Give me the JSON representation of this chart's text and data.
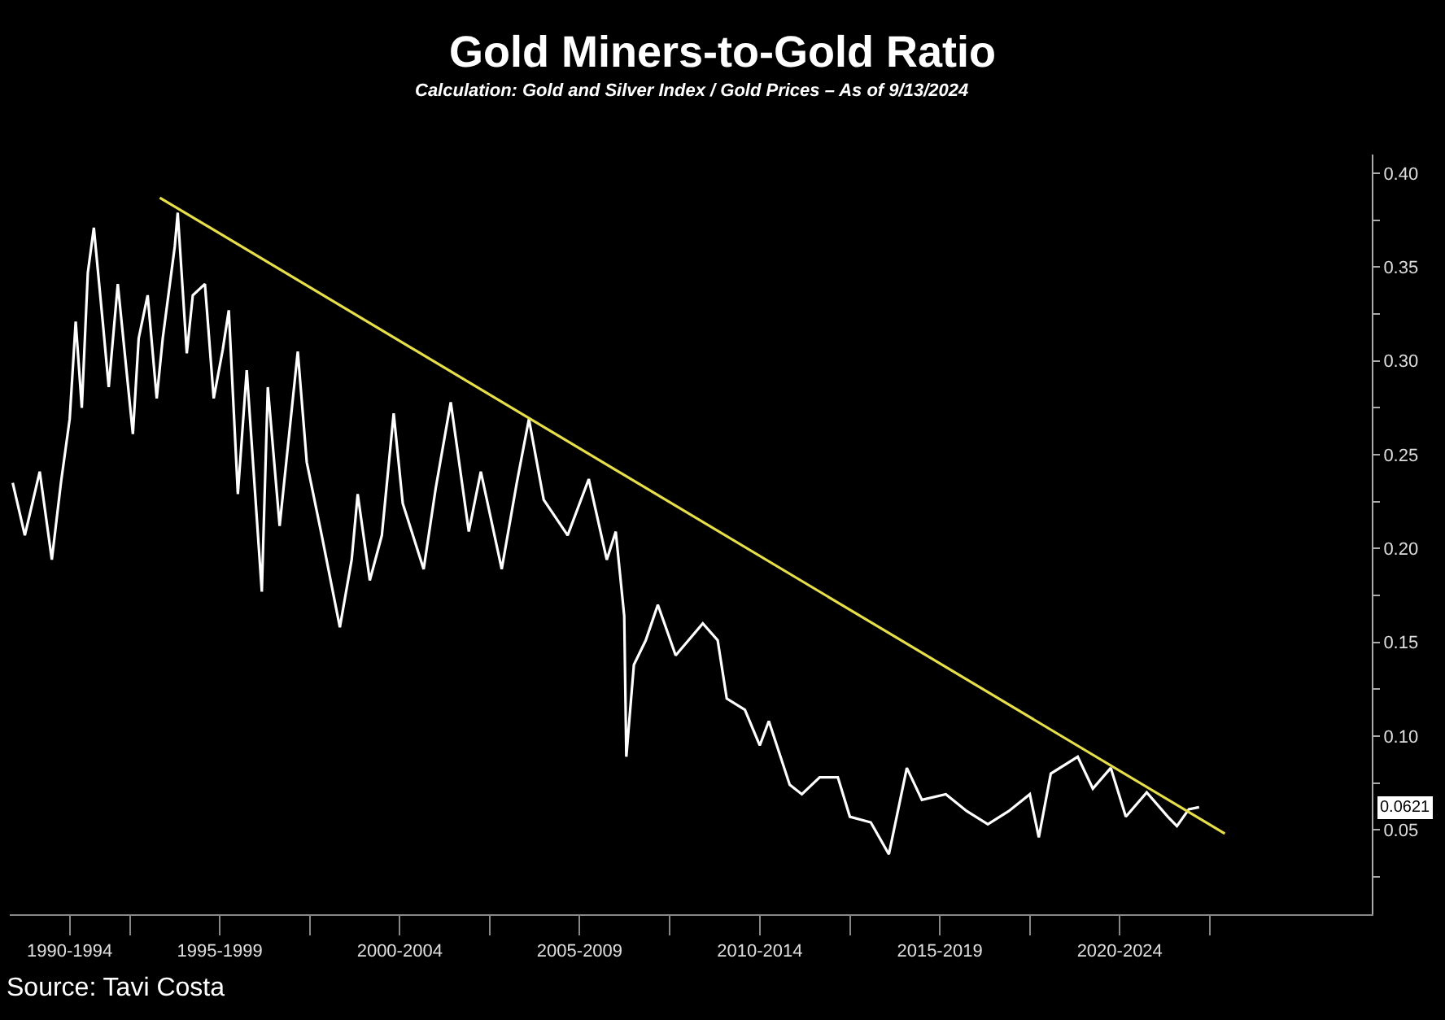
{
  "chart_data": {
    "type": "line",
    "title": "Gold Miners-to-Gold Ratio",
    "subtitle": "Calculation: Gold and Silver Index / Gold Prices – As of 9/13/2024",
    "series": [
      {
        "type": "line",
        "color": "#ffffff",
        "x": [
          "1991-10",
          "1992-02",
          "1992-07",
          "1992-11",
          "1993-02",
          "1993-05",
          "1993-07",
          "1993-09",
          "1993-11",
          "1994-01",
          "1994-04",
          "1994-06",
          "1994-09",
          "1995-02",
          "1995-04",
          "1995-07",
          "1995-10",
          "1995-12",
          "1996-04",
          "1996-05",
          "1996-08",
          "1996-10",
          "1997-02",
          "1997-05",
          "1997-08",
          "1997-10",
          "1998-01",
          "1998-04",
          "1998-09",
          "1998-11",
          "1999-03",
          "1999-09",
          "1999-12",
          "2000-05",
          "2000-11",
          "2001-03",
          "2001-05",
          "2001-09",
          "2002-01",
          "2002-05",
          "2002-08",
          "2003-03",
          "2003-07",
          "2003-12",
          "2004-06",
          "2004-10",
          "2005-05",
          "2005-10",
          "2006-02",
          "2006-07",
          "2007-03",
          "2007-10",
          "2008-04",
          "2008-07",
          "2008-09-25",
          "2008-10-16",
          "2009-01",
          "2009-05",
          "2009-09",
          "2010-03",
          "2010-12",
          "2011-05",
          "2011-08",
          "2012-02",
          "2012-07",
          "2012-10",
          "2013-05",
          "2013-09",
          "2014-03",
          "2014-09",
          "2015-01",
          "2015-08",
          "2016-02",
          "2016-08",
          "2017-01",
          "2017-09",
          "2018-04",
          "2018-11",
          "2019-06",
          "2020-01",
          "2020-04",
          "2020-08",
          "2021-05",
          "2021-10",
          "2022-04",
          "2022-09",
          "2023-04",
          "2023-11",
          "2024-02",
          "2024-06",
          "2024-09-13"
        ],
        "values": [
          0.235,
          0.207,
          0.241,
          0.194,
          0.235,
          0.269,
          0.321,
          0.275,
          0.347,
          0.371,
          0.321,
          0.286,
          0.341,
          0.261,
          0.312,
          0.335,
          0.28,
          0.312,
          0.361,
          0.379,
          0.304,
          0.335,
          0.341,
          0.28,
          0.306,
          0.327,
          0.229,
          0.295,
          0.177,
          0.286,
          0.212,
          0.305,
          0.246,
          0.207,
          0.158,
          0.194,
          0.229,
          0.183,
          0.207,
          0.272,
          0.224,
          0.189,
          0.232,
          0.278,
          0.209,
          0.241,
          0.189,
          0.235,
          0.269,
          0.226,
          0.207,
          0.237,
          0.194,
          0.209,
          0.164,
          0.089,
          0.138,
          0.151,
          0.17,
          0.143,
          0.16,
          0.151,
          0.12,
          0.114,
          0.095,
          0.108,
          0.074,
          0.069,
          0.078,
          0.078,
          0.057,
          0.054,
          0.037,
          0.083,
          0.066,
          0.069,
          0.06,
          0.053,
          0.06,
          0.069,
          0.046,
          0.08,
          0.089,
          0.072,
          0.083,
          0.057,
          0.07,
          0.057,
          0.052,
          0.061,
          0.0621
        ]
      },
      {
        "type": "line",
        "color": "#e6df4a",
        "x": [
          "1995-11",
          "2025-06"
        ],
        "values": [
          0.387,
          0.048
        ]
      }
    ],
    "xlim": [
      "1991-09",
      "2029-07"
    ],
    "xticks": [
      {
        "value": "1993-05",
        "label": "1990-1994"
      },
      {
        "value": "1995-01",
        "label": null
      },
      {
        "value": "1997-07",
        "label": "1995-1999"
      },
      {
        "value": "2000-01",
        "label": null
      },
      {
        "value": "2002-07",
        "label": "2000-2004"
      },
      {
        "value": "2005-01",
        "label": null
      },
      {
        "value": "2007-07",
        "label": "2005-2009"
      },
      {
        "value": "2010-01",
        "label": null
      },
      {
        "value": "2012-07",
        "label": "2010-2014"
      },
      {
        "value": "2015-01",
        "label": null
      },
      {
        "value": "2017-07",
        "label": "2015-2019"
      },
      {
        "value": "2020-01",
        "label": null
      },
      {
        "value": "2022-07",
        "label": "2020-2024"
      },
      {
        "value": "2025-01",
        "label": null
      }
    ],
    "ylim": [
      0.005,
      0.41
    ],
    "yticks": [
      {
        "value": 0.025,
        "label": null
      },
      {
        "value": 0.05,
        "label": "0.05"
      },
      {
        "value": 0.075,
        "label": null
      },
      {
        "value": 0.1,
        "label": "0.10"
      },
      {
        "value": 0.125,
        "label": null
      },
      {
        "value": 0.15,
        "label": "0.15"
      },
      {
        "value": 0.175,
        "label": null
      },
      {
        "value": 0.2,
        "label": "0.20"
      },
      {
        "value": 0.225,
        "label": null
      },
      {
        "value": 0.25,
        "label": "0.25"
      },
      {
        "value": 0.275,
        "label": null
      },
      {
        "value": 0.3,
        "label": "0.30"
      },
      {
        "value": 0.325,
        "label": null
      },
      {
        "value": 0.35,
        "label": "0.35"
      },
      {
        "value": 0.375,
        "label": null
      },
      {
        "value": 0.4,
        "label": "0.40"
      }
    ],
    "annotations": [
      "0.0621",
      "Source: Tavi Costa"
    ]
  }
}
